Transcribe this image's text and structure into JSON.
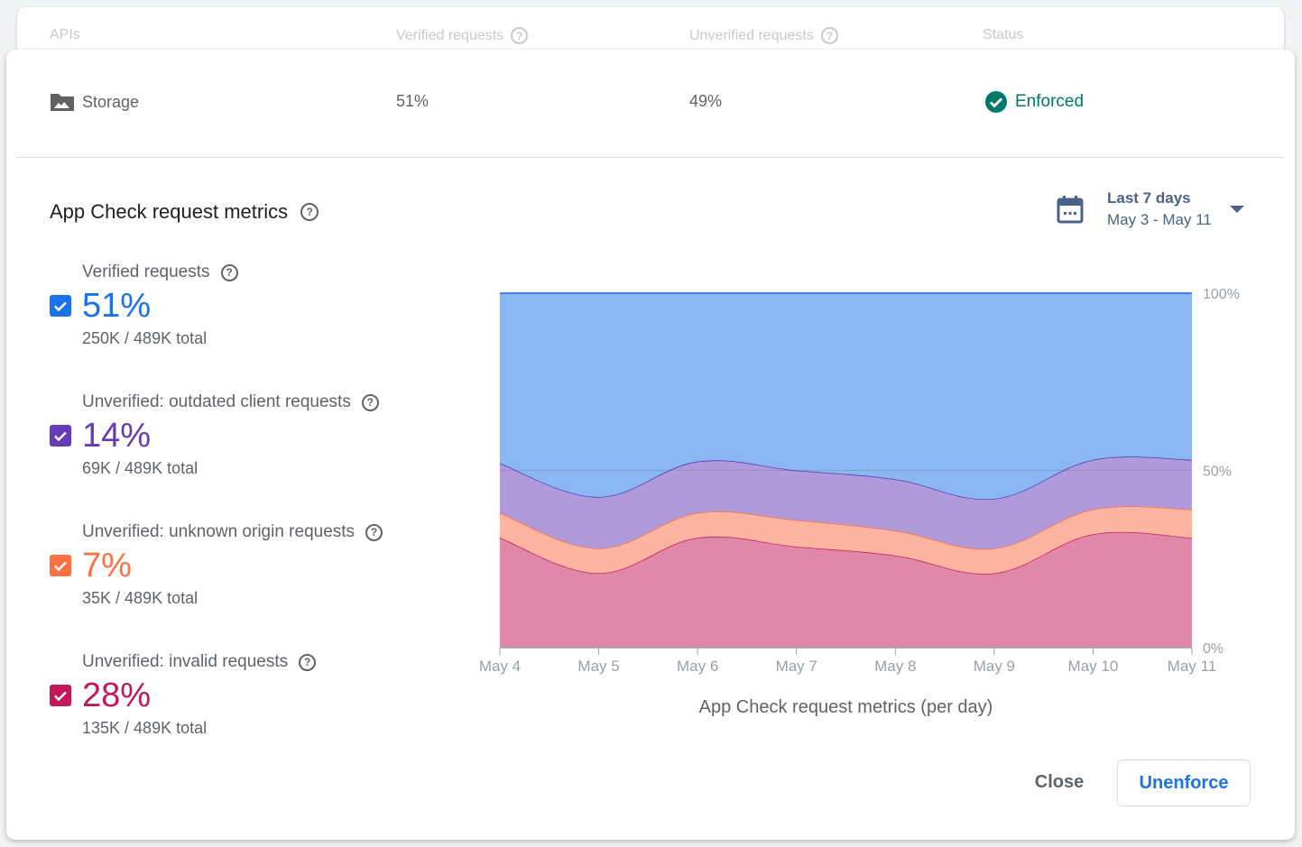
{
  "table": {
    "headers": [
      "APIs",
      "Verified requests",
      "Unverified requests",
      "Status"
    ],
    "row": {
      "api": "Storage",
      "icon": "storage-folder-icon",
      "verified": "51%",
      "unverified": "49%",
      "status": "Enforced",
      "status_color": "#00796b"
    }
  },
  "metrics": {
    "title": "App Check request metrics",
    "date_range": {
      "label": "Last 7 days",
      "range": "May 3 - May 11"
    },
    "items": [
      {
        "label": "Verified requests",
        "pct": "51%",
        "total": "250K / 489K total",
        "color": "#1a73e8",
        "checked": true
      },
      {
        "label": "Unverified: outdated client requests",
        "pct": "14%",
        "total": "69K / 489K total",
        "color": "#673ab7",
        "checked": true
      },
      {
        "label": "Unverified: unknown origin requests",
        "pct": "7%",
        "total": "35K / 489K total",
        "color": "#ff7043",
        "checked": true
      },
      {
        "label": "Unverified: invalid requests",
        "pct": "28%",
        "total": "135K / 489K total",
        "color": "#c2185b",
        "checked": true
      }
    ]
  },
  "chart_data": {
    "type": "area",
    "stacked": true,
    "title": "App Check request metrics (per day)",
    "categories": [
      "May 4",
      "May 5",
      "May 6",
      "May 7",
      "May 8",
      "May 9",
      "May 10",
      "May 11"
    ],
    "yticks": [
      "0%",
      "50%",
      "100%"
    ],
    "ylim": [
      0,
      100
    ],
    "series": [
      {
        "name": "Unverified: invalid requests",
        "values": [
          31,
          21,
          31,
          28.5,
          26,
          21,
          32,
          31
        ],
        "fill": "#e088a9",
        "line": "#d01c5b"
      },
      {
        "name": "Unverified: unknown origin requests",
        "values": [
          7,
          7,
          7,
          7.5,
          7,
          7,
          7,
          8
        ],
        "fill": "#fdb4a0",
        "line": "#ff7043"
      },
      {
        "name": "Unverified: outdated client requests",
        "values": [
          14,
          14.5,
          14.5,
          14,
          14.5,
          14,
          14,
          14
        ],
        "fill": "#b19ada",
        "line": "#5039c0"
      },
      {
        "name": "Verified requests",
        "values": [
          48,
          57.5,
          47.5,
          50,
          52.5,
          58,
          47,
          47
        ],
        "fill": "#8ab6f2",
        "line": "#1a67d8"
      }
    ]
  },
  "actions": {
    "close": "Close",
    "unenforce": "Unenforce"
  }
}
